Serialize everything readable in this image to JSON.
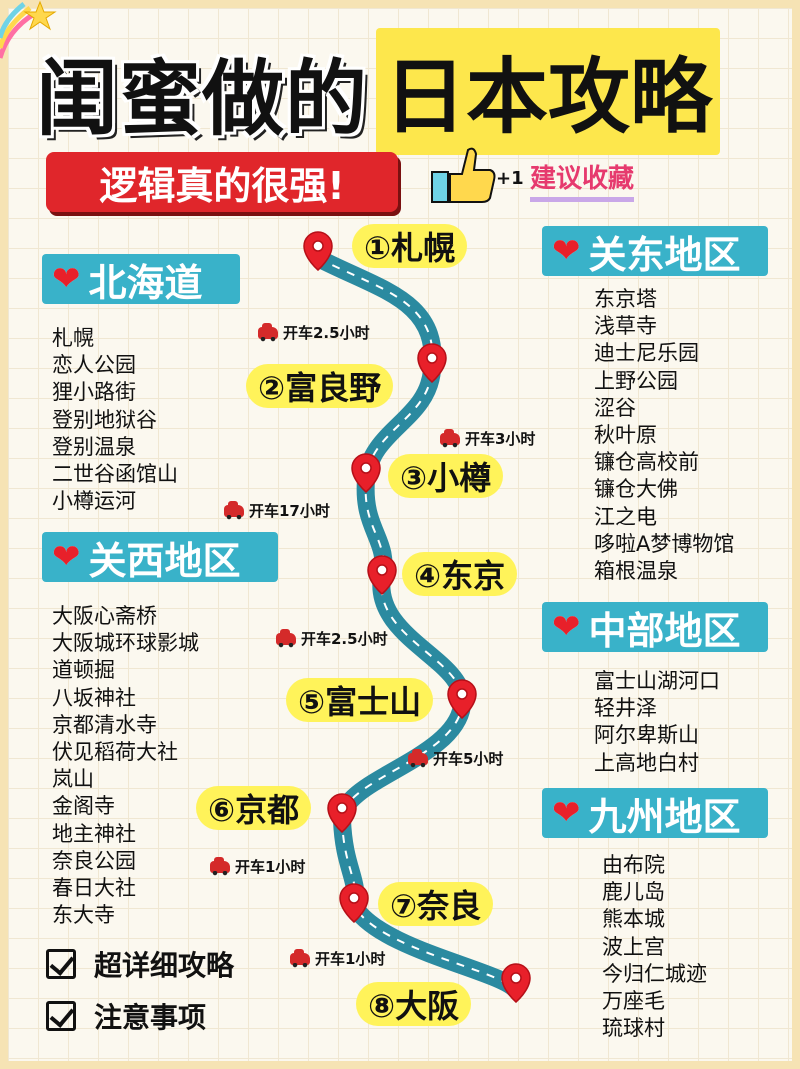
{
  "title": {
    "part1": "闺蜜做的",
    "part2": "日本攻略"
  },
  "subtitle": "逻辑真的很强!",
  "favorite": {
    "plus": "+1",
    "label": "建议收藏"
  },
  "regions": {
    "hokkaido": {
      "name": "北海道",
      "items": [
        "札幌",
        "恋人公园",
        "狸小路街",
        "登别地狱谷",
        "登别温泉",
        "二世谷函馆山",
        "小樽运河"
      ]
    },
    "kansai": {
      "name": "关西地区",
      "items": [
        "大阪心斋桥",
        "大阪城环球影城",
        "道顿掘",
        "八坂神社",
        "京都清水寺",
        "伏见稻荷大社",
        "岚山",
        "金阁寺",
        "地主神社",
        "奈良公园",
        "春日大社",
        "东大寺"
      ]
    },
    "kanto": {
      "name": "关东地区",
      "items": [
        "东京塔",
        "浅草寺",
        "迪士尼乐园",
        "上野公园",
        "涩谷",
        "秋叶原",
        "镰仓高校前",
        "镰仓大佛",
        "江之电",
        "哆啦A梦博物馆",
        "箱根温泉"
      ]
    },
    "chubu": {
      "name": "中部地区",
      "items": [
        "富士山湖河口",
        "轻井泽",
        "阿尔卑斯山",
        "上高地白村"
      ]
    },
    "kyushu": {
      "name": "九州地区",
      "items": [
        "由布院",
        "鹿儿岛",
        "熊本城",
        "波上宫",
        "今归仁城迹",
        "万座毛",
        "琉球村"
      ]
    }
  },
  "stops": [
    "①札幌",
    "②富良野",
    "③小樽",
    "④东京",
    "⑤富士山",
    "⑥京都",
    "⑦奈良",
    "⑧大阪"
  ],
  "drives": [
    "开车2.5小时",
    "开车3小时",
    "开车17小时",
    "开车2.5小时",
    "开车5小时",
    "开车1小时",
    "开车1小时"
  ],
  "checklist": [
    "超详细攻略",
    "注意事项"
  ],
  "colors": {
    "accent": "#39b2c9",
    "title_bg": "#fde74c",
    "subtitle_bg": "#e0262b",
    "pin": "#e8202a",
    "label_bg": "#fff35a"
  }
}
